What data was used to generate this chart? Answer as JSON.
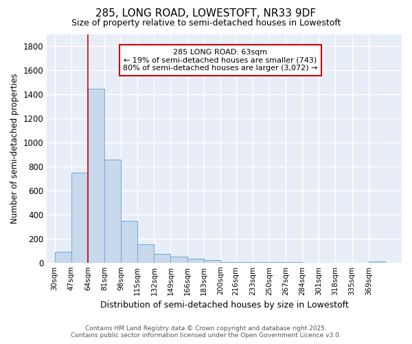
{
  "title_line1": "285, LONG ROAD, LOWESTOFT, NR33 9DF",
  "title_line2": "Size of property relative to semi-detached houses in Lowestoft",
  "xlabel": "Distribution of semi-detached houses by size in Lowestoft",
  "ylabel": "Number of semi-detached properties",
  "bar_left_edges": [
    30,
    47,
    64,
    81,
    98,
    115,
    132,
    149,
    166,
    183,
    200,
    216,
    233,
    250,
    267,
    284,
    301,
    318,
    335,
    352
  ],
  "bar_widths": [
    17,
    17,
    17,
    17,
    17,
    17,
    17,
    17,
    17,
    17,
    17,
    17,
    17,
    17,
    17,
    17,
    17,
    17,
    17,
    17
  ],
  "bar_heights": [
    90,
    750,
    1450,
    860,
    350,
    155,
    75,
    50,
    30,
    20,
    5,
    5,
    5,
    5,
    5,
    0,
    0,
    0,
    0,
    10
  ],
  "bar_color": "#c8d8ed",
  "bar_edge_color": "#7bafd4",
  "tick_labels": [
    "30sqm",
    "47sqm",
    "64sqm",
    "81sqm",
    "98sqm",
    "115sqm",
    "132sqm",
    "149sqm",
    "166sqm",
    "183sqm",
    "200sqm",
    "216sqm",
    "233sqm",
    "250sqm",
    "267sqm",
    "284sqm",
    "301sqm",
    "318sqm",
    "335sqm",
    "369sqm"
  ],
  "vline_x": 64,
  "vline_color": "#cc0000",
  "annotation_text": "285 LONG ROAD: 63sqm\n← 19% of semi-detached houses are smaller (743)\n80% of semi-detached houses are larger (3,072) →",
  "annotation_box_color": "white",
  "annotation_box_edge_color": "#cc0000",
  "ylim": [
    0,
    1900
  ],
  "xlim": [
    22,
    386
  ],
  "fig_background_color": "#ffffff",
  "plot_background_color": "#e8eef8",
  "grid_color": "#ffffff",
  "footer_line1": "Contains HM Land Registry data © Crown copyright and database right 2025.",
  "footer_line2": "Contains public sector information licensed under the Open Government Licence v3.0."
}
